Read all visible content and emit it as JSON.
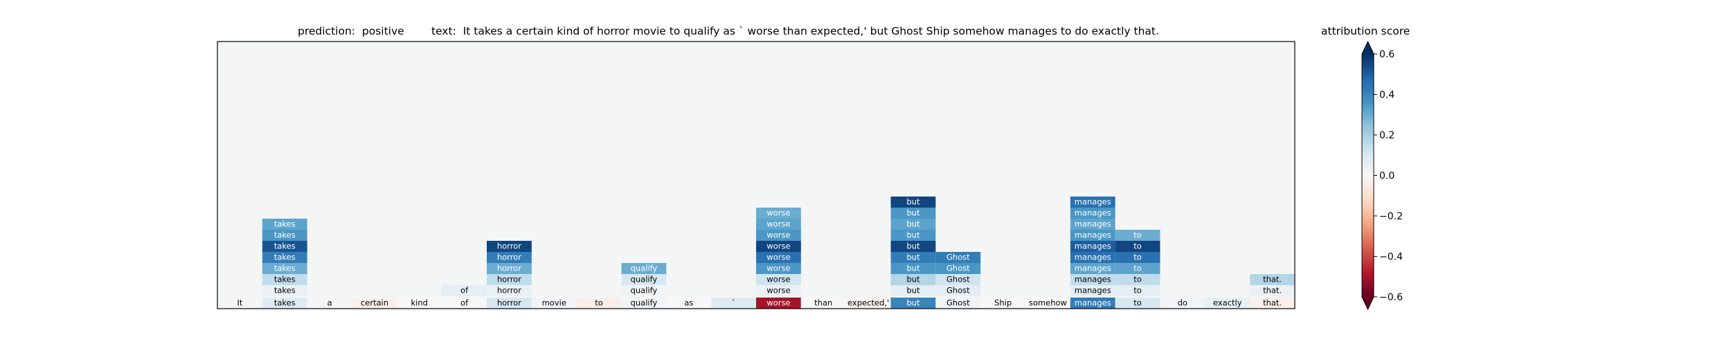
{
  "title": {
    "prediction_label": "prediction:",
    "prediction": "positive",
    "text_label": "text:",
    "text": "It takes a certain kind of horror movie to qualify as ` worse than expected,' but Ghost Ship somehow manages to do exactly that."
  },
  "colorbar": {
    "title": "attribution score",
    "ticks": [
      "0.6",
      "0.4",
      "0.2",
      "0.0",
      "−0.2",
      "−0.4",
      "−0.6"
    ],
    "colormap": "RdBu",
    "vmin": -0.6,
    "vmax": 0.6,
    "extend": "both"
  },
  "colors": {
    "neg_strong": "#67001f",
    "neg_mid": "#d6604d",
    "neutral": "#f7f7f7",
    "pos_mid": "#4393c3",
    "pos_strong": "#053061",
    "background": "#f4f6f6"
  },
  "chart_data": {
    "type": "heatmap",
    "tokens": [
      "It",
      "takes",
      "a",
      "certain",
      "kind",
      "of",
      "horror",
      "movie",
      "to",
      "qualify",
      "as",
      "`",
      "worse",
      "than",
      "expected,'",
      "but",
      "Ghost",
      "Ship",
      "somehow",
      "manages",
      "to",
      "do",
      "exactly",
      "that."
    ],
    "input_attributions": [
      0.01,
      0.08,
      0.01,
      -0.03,
      0.0,
      0.0,
      0.1,
      0.02,
      -0.04,
      0.02,
      0.0,
      0.08,
      -0.5,
      0.0,
      -0.02,
      0.4,
      0.02,
      0.0,
      0.0,
      0.42,
      0.1,
      0.02,
      0.05,
      -0.03
    ],
    "layers": [
      [
        0.0,
        0.04,
        0.0,
        0.0,
        0.0,
        0.06,
        0.04,
        0.0,
        0.0,
        0.02,
        0.0,
        0.0,
        0.04,
        0.0,
        0.0,
        0.06,
        0.06,
        0.0,
        0.0,
        0.06,
        0.06,
        0.0,
        0.0,
        0.04
      ],
      [
        0.0,
        0.15,
        0.0,
        0.0,
        0.0,
        null,
        0.15,
        0.0,
        0.0,
        0.1,
        0.0,
        0.0,
        0.12,
        0.0,
        0.0,
        0.18,
        0.12,
        0.0,
        0.0,
        0.15,
        0.15,
        0.0,
        0.0,
        0.18
      ],
      [
        0.0,
        0.3,
        0.0,
        0.0,
        0.0,
        null,
        0.3,
        0.0,
        0.0,
        0.3,
        0.0,
        0.0,
        0.35,
        0.0,
        0.0,
        0.35,
        0.35,
        0.0,
        0.0,
        0.32,
        0.32,
        0.0,
        0.0,
        null
      ],
      [
        0.0,
        0.42,
        0.0,
        0.0,
        0.0,
        null,
        0.42,
        0.0,
        0.0,
        null,
        0.0,
        0.0,
        0.45,
        0.0,
        0.0,
        0.42,
        0.42,
        0.0,
        0.0,
        0.45,
        0.45,
        0.0,
        0.0,
        null
      ],
      [
        0.0,
        0.52,
        0.0,
        0.0,
        0.0,
        null,
        0.55,
        0.0,
        0.0,
        null,
        0.0,
        0.0,
        0.55,
        0.0,
        0.0,
        0.55,
        null,
        0.0,
        0.0,
        0.5,
        0.55,
        0.0,
        0.0,
        null
      ],
      [
        0.0,
        0.35,
        0.0,
        0.0,
        0.0,
        null,
        null,
        0.0,
        0.0,
        null,
        0.0,
        0.0,
        0.35,
        0.0,
        0.0,
        0.35,
        null,
        0.0,
        0.0,
        0.35,
        0.3,
        0.0,
        0.0,
        null
      ],
      [
        0.0,
        0.32,
        0.0,
        0.0,
        0.0,
        null,
        null,
        0.0,
        0.0,
        null,
        0.0,
        0.0,
        0.32,
        0.0,
        0.0,
        0.32,
        null,
        0.0,
        0.0,
        0.32,
        null,
        0.0,
        0.0,
        null
      ],
      [
        null,
        null,
        null,
        null,
        null,
        null,
        null,
        null,
        null,
        null,
        null,
        null,
        0.3,
        null,
        null,
        0.35,
        null,
        null,
        null,
        0.35,
        null,
        null,
        null,
        null
      ],
      [
        null,
        null,
        null,
        null,
        null,
        null,
        null,
        null,
        null,
        null,
        null,
        null,
        null,
        null,
        null,
        0.55,
        null,
        null,
        null,
        0.45,
        null,
        null,
        null,
        null
      ]
    ],
    "xlabel": "",
    "ylabel": ""
  }
}
